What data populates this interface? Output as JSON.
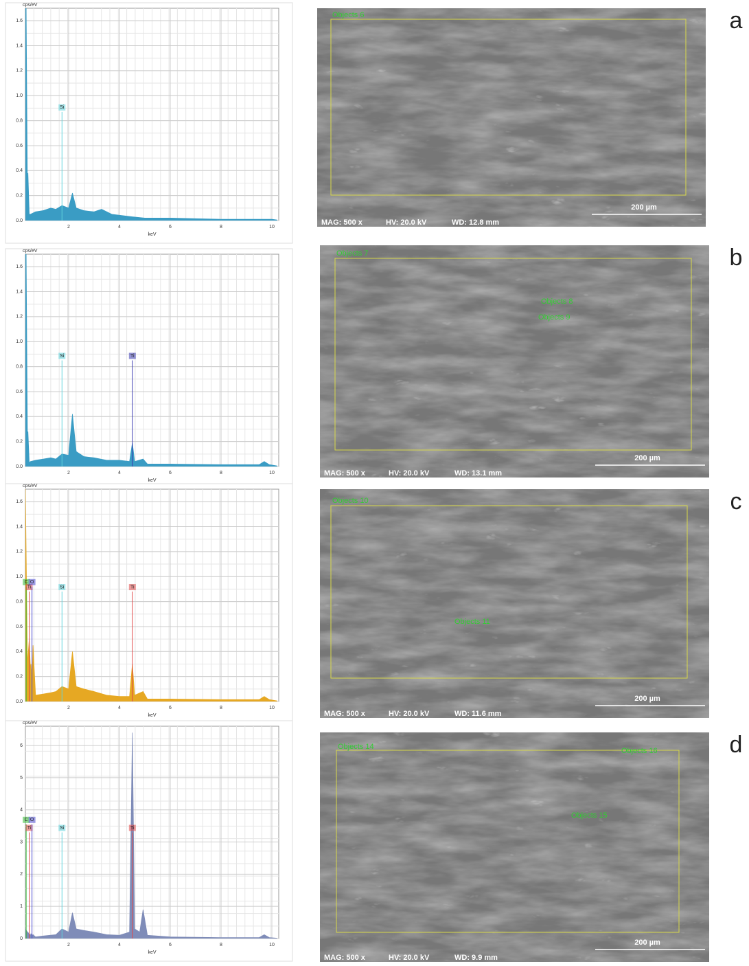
{
  "chart_data": [
    {
      "type": "area",
      "x_label": "keV",
      "y_label": "cps/eV",
      "xlim": [
        0.3,
        10.27
      ],
      "ylim": [
        0,
        1.7
      ],
      "xticks": [
        2,
        4,
        6,
        8,
        10
      ],
      "yticks": [
        {
          "value": 0,
          "label": "0.0"
        },
        0.2,
        0.4,
        0.6,
        0.8,
        {
          "value": 1,
          "label": "1.0"
        },
        1.2,
        1.4,
        1.6
      ],
      "x": [
        0.3,
        0.33,
        0.38,
        0.4,
        0.45,
        0.5,
        0.7,
        1.0,
        1.3,
        1.5,
        1.74,
        2.0,
        2.15,
        2.3,
        2.6,
        3.0,
        3.3,
        3.7,
        4.5,
        5.0,
        6.0,
        7.0,
        8.0,
        9.0,
        10.0,
        10.2
      ],
      "series": [
        {
          "color": "#3a9cc4",
          "values": [
            1.7,
            1.7,
            0.2,
            0.38,
            0.05,
            0.05,
            0.07,
            0.08,
            0.1,
            0.09,
            0.12,
            0.1,
            0.22,
            0.1,
            0.08,
            0.07,
            0.09,
            0.05,
            0.03,
            0.02,
            0.02,
            0.015,
            0.01,
            0.01,
            0.01,
            0.005
          ]
        }
      ],
      "annotations": [
        {
          "text": "Si",
          "x": 1.74,
          "y": 0.87,
          "color": "#5fd3dc"
        }
      ]
    },
    {
      "type": "area",
      "x_label": "keV",
      "y_label": "cps/eV",
      "xlim": [
        0.3,
        10.27
      ],
      "ylim": [
        0,
        1.7
      ],
      "xticks": [
        2,
        4,
        6,
        8,
        10
      ],
      "yticks": [
        {
          "value": 0,
          "label": "0.0"
        },
        0.2,
        0.4,
        0.6,
        0.8,
        {
          "value": 1,
          "label": "1.0"
        },
        1.2,
        1.4,
        1.6
      ],
      "x": [
        0.3,
        0.33,
        0.38,
        0.4,
        0.45,
        0.5,
        0.7,
        1.0,
        1.3,
        1.5,
        1.74,
        2.0,
        2.15,
        2.3,
        2.6,
        3.0,
        3.5,
        4.0,
        4.4,
        4.51,
        4.6,
        4.93,
        5.1,
        6.0,
        8.0,
        9.5,
        9.7,
        9.9,
        10.2
      ],
      "series": [
        {
          "color": "#3a9cc4",
          "values": [
            1.7,
            1.7,
            0.2,
            0.28,
            0.03,
            0.04,
            0.05,
            0.06,
            0.07,
            0.06,
            0.1,
            0.09,
            0.42,
            0.12,
            0.08,
            0.07,
            0.05,
            0.05,
            0.04,
            0.19,
            0.04,
            0.06,
            0.02,
            0.02,
            0.015,
            0.015,
            0.04,
            0.015,
            0.005
          ]
        }
      ],
      "annotations": [
        {
          "text": "Si",
          "x": 1.74,
          "y": 0.85,
          "color": "#5fd3dc"
        },
        {
          "text": "Ti",
          "x": 4.51,
          "y": 0.85,
          "color": "#3b3bb0"
        }
      ]
    },
    {
      "type": "area",
      "x_label": "keV",
      "y_label": "cps/eV",
      "xlim": [
        0.3,
        10.27
      ],
      "ylim": [
        0,
        1.7
      ],
      "xticks": [
        2,
        4,
        6,
        8,
        10
      ],
      "yticks": [
        {
          "value": 0,
          "label": "0.0"
        },
        0.2,
        0.4,
        0.6,
        0.8,
        {
          "value": 1,
          "label": "1.0"
        },
        1.2,
        1.4,
        1.6
      ],
      "x": [
        0.3,
        0.38,
        0.45,
        0.5,
        0.52,
        0.56,
        0.6,
        0.7,
        1.0,
        1.3,
        1.5,
        1.74,
        2.0,
        2.15,
        2.3,
        2.6,
        3.0,
        3.5,
        4.0,
        4.4,
        4.51,
        4.6,
        4.93,
        5.1,
        6.0,
        8.0,
        9.5,
        9.7,
        9.9,
        10.2
      ],
      "series": [
        {
          "color": "#e6a823",
          "values": [
            1.7,
            0.3,
            0.5,
            0.25,
            0.3,
            0.15,
            0.45,
            0.05,
            0.06,
            0.07,
            0.08,
            0.12,
            0.1,
            0.4,
            0.12,
            0.1,
            0.08,
            0.05,
            0.04,
            0.04,
            0.3,
            0.05,
            0.08,
            0.02,
            0.02,
            0.015,
            0.015,
            0.04,
            0.015,
            0.005
          ]
        }
      ],
      "annotations": [
        {
          "text": "C",
          "x": 0.33,
          "y": 0.92,
          "color": "#33bb33"
        },
        {
          "text": "Ti",
          "x": 0.45,
          "y": 0.88,
          "color": "#e04848"
        },
        {
          "text": "O",
          "x": 0.56,
          "y": 0.92,
          "color": "#4a4ad0"
        },
        {
          "text": "Si",
          "x": 1.74,
          "y": 0.88,
          "color": "#5fd3dc"
        },
        {
          "text": "Ti",
          "x": 4.51,
          "y": 0.88,
          "color": "#e04848"
        }
      ]
    },
    {
      "type": "area",
      "x_label": "keV",
      "y_label": "cps/eV",
      "xlim": [
        0.3,
        10.27
      ],
      "ylim": [
        0,
        6.6
      ],
      "xticks": [
        2,
        4,
        6,
        8,
        10
      ],
      "yticks": [
        0,
        1,
        2,
        3,
        4,
        5,
        6
      ],
      "x": [
        0.3,
        0.38,
        0.45,
        0.5,
        0.52,
        0.56,
        0.6,
        0.7,
        1.0,
        1.5,
        1.74,
        2.0,
        2.15,
        2.3,
        2.6,
        3.0,
        3.5,
        4.0,
        4.4,
        4.51,
        4.6,
        4.8,
        4.93,
        5.1,
        6.0,
        8.0,
        9.5,
        9.7,
        9.9,
        10.2
      ],
      "series": [
        {
          "color": "#7f8cb8",
          "values": [
            0.3,
            0.2,
            0.15,
            0.1,
            0.15,
            0.1,
            0.12,
            0.05,
            0.08,
            0.12,
            0.3,
            0.2,
            0.8,
            0.3,
            0.25,
            0.2,
            0.12,
            0.1,
            0.2,
            6.4,
            0.3,
            0.2,
            0.9,
            0.1,
            0.05,
            0.03,
            0.03,
            0.12,
            0.03,
            0.01
          ]
        }
      ],
      "annotations": [
        {
          "text": "C",
          "x": 0.33,
          "y": 3.55,
          "color": "#33bb33"
        },
        {
          "text": "Ti",
          "x": 0.45,
          "y": 3.3,
          "color": "#e04848"
        },
        {
          "text": "O",
          "x": 0.56,
          "y": 3.55,
          "color": "#4a4ad0"
        },
        {
          "text": "Si",
          "x": 1.74,
          "y": 3.3,
          "color": "#5fd3dc"
        },
        {
          "text": "Ti",
          "x": 4.51,
          "y": 3.3,
          "color": "#e04848"
        }
      ]
    }
  ],
  "micrographs": [
    {
      "letter": "a",
      "mag": "MAG: 500 x",
      "hv": "HV: 20.0 kV",
      "wd": "WD: 12.8 mm",
      "scale": "200 µm",
      "objects": [
        "Objects 6"
      ]
    },
    {
      "letter": "b",
      "mag": "MAG: 500 x",
      "hv": "HV: 20.0 kV",
      "wd": "WD: 13.1 mm",
      "scale": "200 µm",
      "objects": [
        "Objects 7",
        "Objects 8",
        "Objects 9"
      ]
    },
    {
      "letter": "c",
      "mag": "MAG: 500 x",
      "hv": "HV: 20.0 kV",
      "wd": "WD: 11.6 mm",
      "scale": "200 µm",
      "objects": [
        "Objects 10",
        "Objects 11"
      ]
    },
    {
      "letter": "d",
      "mag": "MAG: 500 x",
      "hv": "HV: 20.0 kV",
      "wd": "WD: 9.9 mm",
      "scale": "200 µm",
      "objects": [
        "Objects 14",
        "Objects 16",
        "Objects 15"
      ]
    }
  ]
}
